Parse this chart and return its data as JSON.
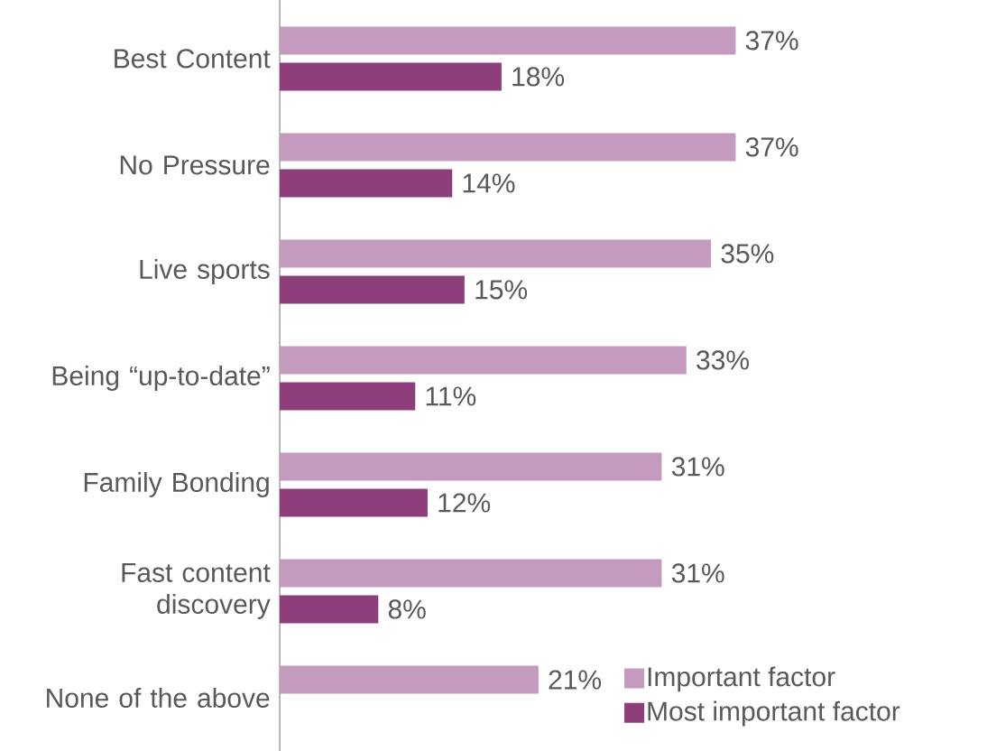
{
  "chart_data": {
    "type": "bar",
    "orientation": "horizontal",
    "legend": "bottom right",
    "categories": [
      "Best Content",
      "No Pressure",
      "Live sports",
      "Being “up-to-date”",
      "Family Bonding",
      "Fast content discovery",
      "None of the above"
    ],
    "series": [
      {
        "name": "Important factor",
        "color": "#c49bbe",
        "values": [
          37,
          37,
          35,
          33,
          31,
          31,
          21
        ],
        "value_labels": [
          "37%",
          "37%",
          "35%",
          "33%",
          "31%",
          "31%",
          "21%"
        ]
      },
      {
        "name": "Most important factor",
        "color": "#8e3e7a",
        "values": [
          18,
          14,
          15,
          11,
          12,
          8,
          null
        ],
        "value_labels": [
          "18%",
          "14%",
          "15%",
          "11%",
          "12%",
          "8%",
          null
        ]
      }
    ]
  }
}
